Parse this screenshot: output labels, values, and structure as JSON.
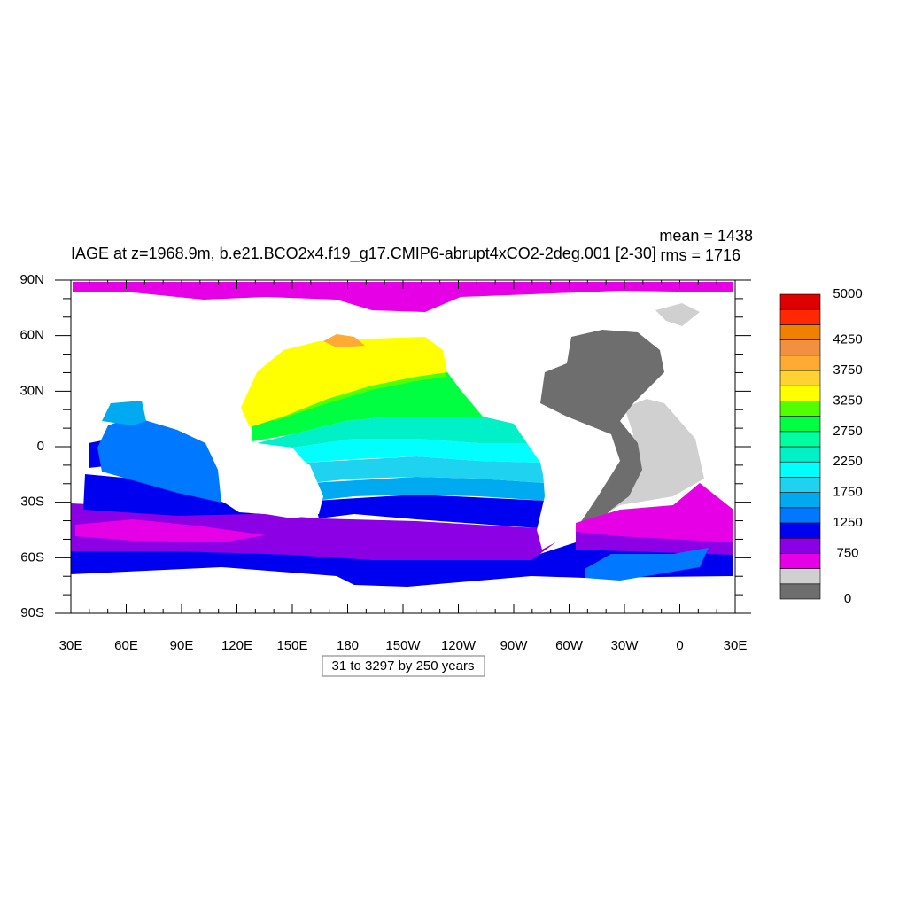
{
  "title": "IAGE at z=1968.9m, b.e21.BCO2x4.f19_g17.CMIP6-abrupt4xCO2-2deg.001 [2-30]",
  "stats": [
    "mean = 1438",
    "rms = 1716"
  ],
  "footer": "31 to 3297 by 250 years",
  "x_tick_labels": [
    "30E",
    "60E",
    "90E",
    "120E",
    "150E",
    "180",
    "150W",
    "120W",
    "90W",
    "60W",
    "30W",
    "0",
    "30E"
  ],
  "y_tick_labels": [
    "90N",
    "60N",
    "30N",
    "0",
    "30S",
    "60S",
    "90S"
  ],
  "colorbar": {
    "range": [
      0,
      5000
    ],
    "labels": [
      0,
      750,
      1250,
      1750,
      2250,
      2750,
      3250,
      3750,
      4250,
      5000
    ],
    "colors": [
      "#6e6e6e",
      "#d0d0d0",
      "#e600e6",
      "#8c00e6",
      "#0000f0",
      "#0078ff",
      "#00aaf0",
      "#1ed2f0",
      "#00ffff",
      "#00f0c8",
      "#00ffa0",
      "#00ff40",
      "#50ff00",
      "#ffff00",
      "#ffd232",
      "#ffaa32",
      "#f09040",
      "#f08000",
      "#ff2800",
      "#e00000",
      "#c00000"
    ]
  }
}
